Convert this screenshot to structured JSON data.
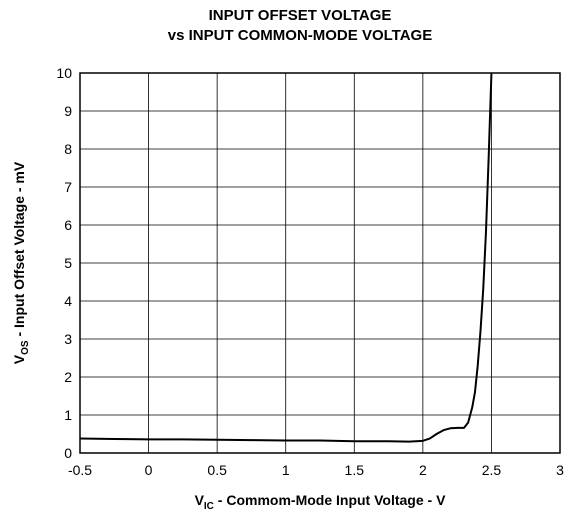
{
  "chart_data": {
    "type": "line",
    "title": [
      "INPUT OFFSET VOLTAGE",
      "vs INPUT COMMON-MODE VOLTAGE"
    ],
    "x_label": {
      "main": "V",
      "sub": "IC",
      "rest": " - Commom-Mode Input Voltage - V"
    },
    "y_label": {
      "main": "V",
      "sub": "OS",
      "rest": " - Input Offset Voltage - mV"
    },
    "x": [
      -0.5,
      -0.25,
      0,
      0.25,
      0.5,
      0.75,
      1,
      1.25,
      1.5,
      1.75,
      1.9,
      2.0,
      2.05,
      2.1,
      2.15,
      2.2,
      2.25,
      2.3,
      2.33,
      2.36,
      2.38,
      2.4,
      2.42,
      2.44,
      2.46,
      2.48,
      2.5
    ],
    "series": [
      {
        "color": "#000000",
        "values": [
          0.38,
          0.37,
          0.36,
          0.36,
          0.35,
          0.34,
          0.33,
          0.33,
          0.31,
          0.31,
          0.3,
          0.32,
          0.38,
          0.5,
          0.6,
          0.65,
          0.66,
          0.66,
          0.8,
          1.2,
          1.6,
          2.3,
          3.2,
          4.3,
          5.8,
          7.8,
          10
        ]
      }
    ],
    "xlim": [
      -0.5,
      3
    ],
    "ylim": [
      0,
      10
    ],
    "xticks": [
      -0.5,
      0,
      0.5,
      1,
      1.5,
      2,
      2.5,
      3
    ],
    "yticks": [
      0,
      1,
      2,
      3,
      4,
      5,
      6,
      7,
      8,
      9,
      10
    ],
    "grid": true
  }
}
